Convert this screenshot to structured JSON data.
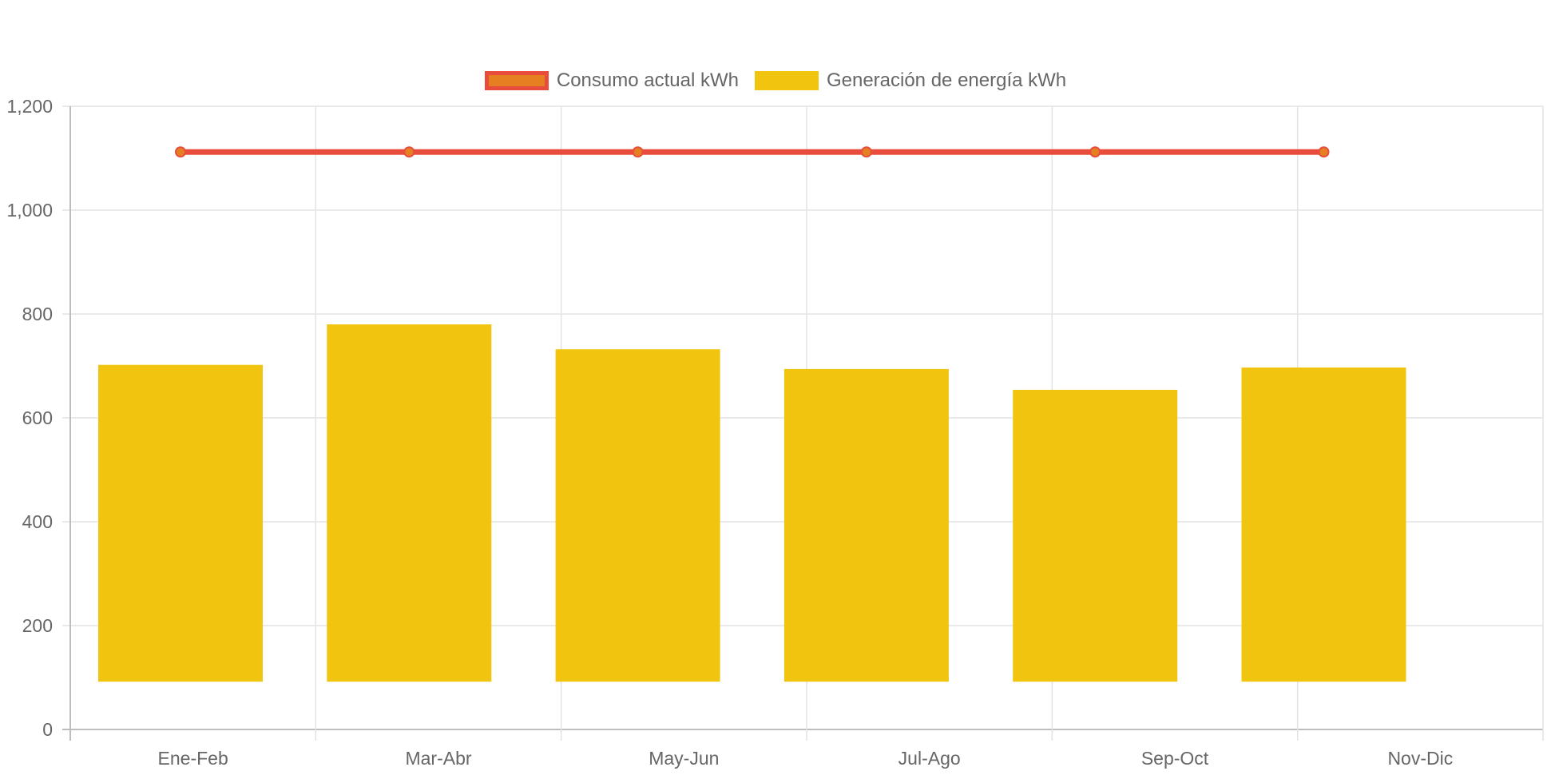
{
  "chart_data": {
    "type": "bar",
    "categories": [
      "Ene-Feb",
      "Mar-Abr",
      "May-Jun",
      "Jul-Ago",
      "Sep-Oct",
      "Nov-Dic"
    ],
    "ylim": [
      0,
      1200
    ],
    "yticks": [
      0,
      200,
      400,
      600,
      800,
      1000,
      1200
    ],
    "ytick_labels": [
      "0",
      "200",
      "400",
      "600",
      "800",
      "1,000",
      "1,200"
    ],
    "grid": true,
    "legend_position": "top-center",
    "series": [
      {
        "name": "Consumo actual kWh",
        "type": "line",
        "values": [
          1112,
          1112,
          1112,
          1112,
          1112,
          1112
        ],
        "color": "#e74c3c",
        "point_fill": "#e67e22"
      },
      {
        "name": "Generación de energía kWh",
        "type": "bar",
        "base": 92,
        "values": [
          702,
          780,
          732,
          694,
          654,
          697
        ],
        "color": "#f1c40f"
      }
    ]
  }
}
